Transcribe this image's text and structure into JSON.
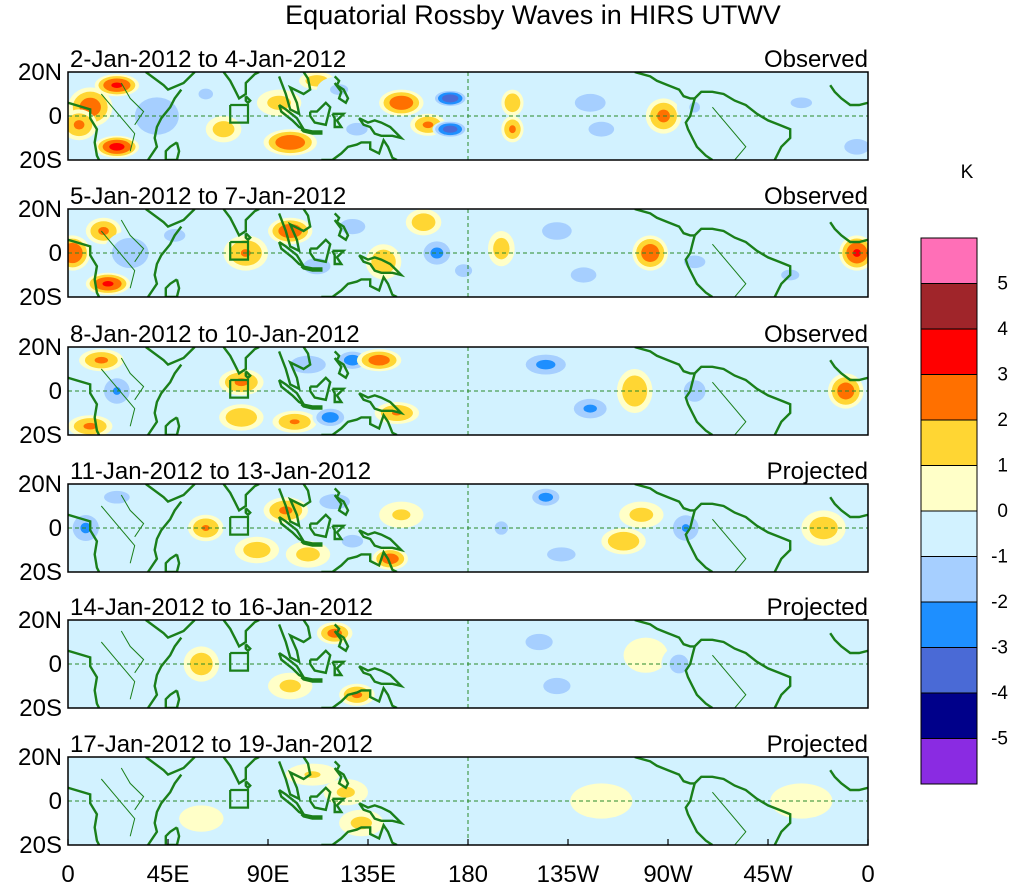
{
  "chart_data": {
    "type": "heatmap",
    "title": "Equatorial Rossby Waves in HIRS UTWV",
    "units": "K",
    "xlabel": "",
    "ylabel": "",
    "x_range_deg_east": [
      0,
      360
    ],
    "y_range_deg": [
      -20,
      20
    ],
    "x_ticks": [
      "0",
      "45E",
      "90E",
      "135E",
      "180",
      "135W",
      "90W",
      "45W",
      "0"
    ],
    "y_ticks": [
      "20N",
      "0",
      "20S"
    ],
    "colorbar": {
      "levels": [
        "5",
        "4",
        "3",
        "2",
        "1",
        "0",
        "-1",
        "-2",
        "-3",
        "-4",
        "-5"
      ],
      "colors": [
        "#ff6fb7",
        "#a0252a",
        "#ff0000",
        "#ff7000",
        "#ffd633",
        "#ffffc8",
        "#d2f2ff",
        "#a6cfff",
        "#1e8fff",
        "#4a6ad6",
        "#00008a",
        "#8a2be2"
      ]
    },
    "panels": [
      {
        "period": "2-Jan-2012 to 4-Jan-2012",
        "type": "Observed",
        "blobs": [
          [
            10,
            4,
            2.6,
            10,
            9
          ],
          [
            22,
            14,
            3.2,
            10,
            5
          ],
          [
            22,
            -14,
            3.4,
            10,
            5
          ],
          [
            5,
            -4,
            2.2,
            8,
            7
          ],
          [
            40,
            0,
            -2.0,
            14,
            12
          ],
          [
            62,
            10,
            -1.2,
            8,
            6
          ],
          [
            70,
            -6,
            1.6,
            8,
            6
          ],
          [
            100,
            -12,
            2.9,
            12,
            6
          ],
          [
            95,
            6,
            1.4,
            10,
            6
          ],
          [
            112,
            16,
            1.7,
            8,
            4
          ],
          [
            122,
            12,
            -1.2,
            10,
            6
          ],
          [
            130,
            -6,
            -1.3,
            10,
            6
          ],
          [
            150,
            6,
            2.8,
            10,
            6
          ],
          [
            162,
            -4,
            2.2,
            8,
            5
          ],
          [
            172,
            8,
            -3.8,
            8,
            4
          ],
          [
            172,
            -6,
            -3.6,
            8,
            4
          ],
          [
            186,
            0,
            -1.0,
            8,
            12
          ],
          [
            200,
            6,
            2.0,
            5,
            6
          ],
          [
            200,
            -6,
            2.2,
            5,
            6
          ],
          [
            235,
            6,
            -1.5,
            12,
            7
          ],
          [
            240,
            -6,
            -1.3,
            12,
            7
          ],
          [
            268,
            0,
            2.3,
            8,
            8
          ],
          [
            282,
            4,
            -1.1,
            8,
            8
          ],
          [
            330,
            6,
            -1.1,
            16,
            8
          ],
          [
            355,
            -14,
            -2.0,
            8,
            5
          ]
        ]
      },
      {
        "period": "5-Jan-2012 to 7-Jan-2012",
        "type": "Observed",
        "blobs": [
          [
            2,
            0,
            3.0,
            8,
            8
          ],
          [
            18,
            -14,
            3.2,
            10,
            5
          ],
          [
            16,
            10,
            2.2,
            8,
            6
          ],
          [
            28,
            0,
            -1.9,
            12,
            10
          ],
          [
            48,
            8,
            -1.3,
            10,
            6
          ],
          [
            80,
            0,
            2.1,
            10,
            8
          ],
          [
            100,
            10,
            2.8,
            10,
            6
          ],
          [
            112,
            -6,
            -1.6,
            10,
            6
          ],
          [
            128,
            12,
            -1.5,
            10,
            6
          ],
          [
            142,
            -4,
            1.9,
            8,
            8
          ],
          [
            160,
            14,
            1.8,
            8,
            6
          ],
          [
            166,
            0,
            -2.3,
            8,
            7
          ],
          [
            178,
            -8,
            -1.3,
            8,
            6
          ],
          [
            195,
            2,
            1.6,
            6,
            8
          ],
          [
            220,
            10,
            -1.8,
            10,
            6
          ],
          [
            232,
            -10,
            -1.5,
            10,
            6
          ],
          [
            262,
            0,
            2.7,
            8,
            8
          ],
          [
            282,
            -4,
            -1.3,
            10,
            6
          ],
          [
            295,
            10,
            -1.0,
            10,
            6
          ],
          [
            325,
            -10,
            -1.2,
            10,
            6
          ],
          [
            355,
            0,
            3.1,
            8,
            8
          ]
        ]
      },
      {
        "period": "8-Jan-2012 to 10-Jan-2012",
        "type": "Observed",
        "blobs": [
          [
            10,
            -16,
            2.2,
            10,
            5
          ],
          [
            15,
            14,
            2.2,
            10,
            5
          ],
          [
            22,
            0,
            -2.1,
            8,
            8
          ],
          [
            45,
            -6,
            -1.0,
            10,
            8
          ],
          [
            78,
            4,
            2.2,
            10,
            6
          ],
          [
            78,
            -12,
            2.0,
            10,
            6
          ],
          [
            102,
            -14,
            2.1,
            10,
            5
          ],
          [
            108,
            12,
            -1.8,
            12,
            6
          ],
          [
            118,
            -12,
            -2.6,
            8,
            5
          ],
          [
            128,
            14,
            -2.6,
            8,
            5
          ],
          [
            140,
            14,
            2.6,
            10,
            5
          ],
          [
            148,
            -10,
            2.1,
            10,
            5
          ],
          [
            195,
            4,
            -1.0,
            10,
            8
          ],
          [
            215,
            12,
            -2.3,
            12,
            6
          ],
          [
            235,
            -8,
            -2.2,
            10,
            6
          ],
          [
            255,
            0,
            2.0,
            8,
            10
          ],
          [
            282,
            0,
            -1.6,
            8,
            8
          ],
          [
            300,
            -10,
            -1.0,
            10,
            6
          ],
          [
            350,
            0,
            2.6,
            8,
            8
          ]
        ]
      },
      {
        "period": "11-Jan-2012 to 13-Jan-2012",
        "type": "Projected",
        "blobs": [
          [
            8,
            0,
            -2.2,
            8,
            8
          ],
          [
            22,
            14,
            -1.5,
            10,
            5
          ],
          [
            40,
            -8,
            -1.0,
            10,
            6
          ],
          [
            60,
            10,
            -0.9,
            10,
            6
          ],
          [
            62,
            0,
            2.1,
            8,
            6
          ],
          [
            85,
            -10,
            1.6,
            10,
            6
          ],
          [
            98,
            8,
            2.2,
            10,
            6
          ],
          [
            108,
            -12,
            1.4,
            10,
            6
          ],
          [
            120,
            12,
            -1.9,
            10,
            5
          ],
          [
            128,
            -6,
            -1.3,
            10,
            6
          ],
          [
            145,
            -14,
            2.6,
            8,
            5
          ],
          [
            150,
            6,
            1.2,
            10,
            6
          ],
          [
            195,
            0,
            -1.1,
            10,
            10
          ],
          [
            215,
            14,
            -2.4,
            8,
            5
          ],
          [
            222,
            -12,
            -1.7,
            10,
            5
          ],
          [
            250,
            -6,
            2.0,
            10,
            6
          ],
          [
            258,
            6,
            1.4,
            10,
            6
          ],
          [
            278,
            0,
            -2.1,
            8,
            8
          ],
          [
            300,
            6,
            -0.9,
            10,
            6
          ],
          [
            340,
            0,
            1.7,
            10,
            8
          ]
        ]
      },
      {
        "period": "14-Jan-2012 to 16-Jan-2012",
        "type": "Projected",
        "blobs": [
          [
            30,
            6,
            -1.0,
            12,
            8
          ],
          [
            60,
            0,
            1.7,
            8,
            8
          ],
          [
            100,
            -10,
            1.3,
            10,
            6
          ],
          [
            120,
            14,
            2.4,
            8,
            5
          ],
          [
            122,
            -6,
            -1.0,
            10,
            6
          ],
          [
            130,
            -14,
            2.2,
            8,
            5
          ],
          [
            148,
            0,
            -0.9,
            10,
            8
          ],
          [
            170,
            6,
            -0.8,
            10,
            6
          ],
          [
            212,
            10,
            -1.6,
            10,
            6
          ],
          [
            220,
            -10,
            -1.6,
            10,
            6
          ],
          [
            240,
            -14,
            -1.0,
            10,
            5
          ],
          [
            260,
            4,
            0.8,
            10,
            8
          ],
          [
            275,
            0,
            -1.4,
            8,
            8
          ]
        ]
      },
      {
        "period": "17-Jan-2012 to 19-Jan-2012",
        "type": "Projected",
        "blobs": [
          [
            40,
            6,
            -1.0,
            14,
            8
          ],
          [
            60,
            -8,
            0.8,
            10,
            6
          ],
          [
            90,
            -10,
            -0.8,
            12,
            6
          ],
          [
            110,
            12,
            1.1,
            12,
            5
          ],
          [
            125,
            4,
            1.2,
            10,
            6
          ],
          [
            132,
            -10,
            1.3,
            10,
            6
          ],
          [
            150,
            0,
            -0.7,
            10,
            8
          ],
          [
            200,
            8,
            -1.0,
            12,
            6
          ],
          [
            210,
            -10,
            -0.9,
            12,
            6
          ],
          [
            240,
            0,
            0.7,
            14,
            8
          ],
          [
            277,
            0,
            -1.0,
            6,
            6
          ],
          [
            330,
            0,
            0.6,
            14,
            8
          ]
        ]
      }
    ]
  }
}
